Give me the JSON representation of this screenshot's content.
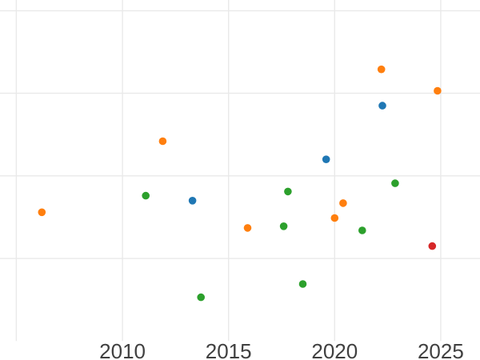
{
  "figure": {
    "background_color": "#ffffff",
    "grid_color": "#e9e9e9",
    "tick_label_color": "#404040"
  },
  "chart_data": {
    "type": "scatter",
    "title": "",
    "xlabel": "",
    "ylabel": "",
    "legend": "none",
    "grid": "on",
    "x_axis": {
      "tick_labels": [
        "2010",
        "2015",
        "2020",
        "2025"
      ],
      "tick_values": [
        2010,
        2015,
        2020,
        2025
      ],
      "gridline_values": [
        2005,
        2010,
        2015,
        2020,
        2025
      ],
      "visible_range": [
        2004.23,
        2026.85
      ]
    },
    "y_axis": {
      "tick_labels_visible": false,
      "units": "unlabeled-gridline-units",
      "gridline_values": [
        1,
        2,
        3,
        4
      ],
      "bottom_gridline_drawn": false,
      "visible_range": [
        -0.23,
        4.13
      ]
    },
    "marker": {
      "shape": "circle",
      "radius_px": 4.8
    },
    "series": [
      {
        "name": "blue",
        "color": "#1f77b4",
        "points": [
          {
            "x": 2013.3,
            "y": 1.7
          },
          {
            "x": 2019.6,
            "y": 2.2
          },
          {
            "x": 2022.25,
            "y": 2.85
          }
        ]
      },
      {
        "name": "orange",
        "color": "#ff7f0e",
        "points": [
          {
            "x": 2006.2,
            "y": 1.56
          },
          {
            "x": 2011.9,
            "y": 2.42
          },
          {
            "x": 2015.9,
            "y": 1.37
          },
          {
            "x": 2020.0,
            "y": 1.49
          },
          {
            "x": 2020.4,
            "y": 1.67
          },
          {
            "x": 2022.2,
            "y": 3.29
          },
          {
            "x": 2024.85,
            "y": 3.03
          }
        ]
      },
      {
        "name": "green",
        "color": "#2ca02c",
        "points": [
          {
            "x": 2011.1,
            "y": 1.76
          },
          {
            "x": 2013.7,
            "y": 0.53
          },
          {
            "x": 2017.6,
            "y": 1.39
          },
          {
            "x": 2017.8,
            "y": 1.81
          },
          {
            "x": 2018.5,
            "y": 0.69
          },
          {
            "x": 2021.3,
            "y": 1.34
          },
          {
            "x": 2022.85,
            "y": 1.91
          }
        ]
      },
      {
        "name": "red",
        "color": "#d62728",
        "points": [
          {
            "x": 2024.6,
            "y": 1.15
          }
        ]
      }
    ]
  }
}
